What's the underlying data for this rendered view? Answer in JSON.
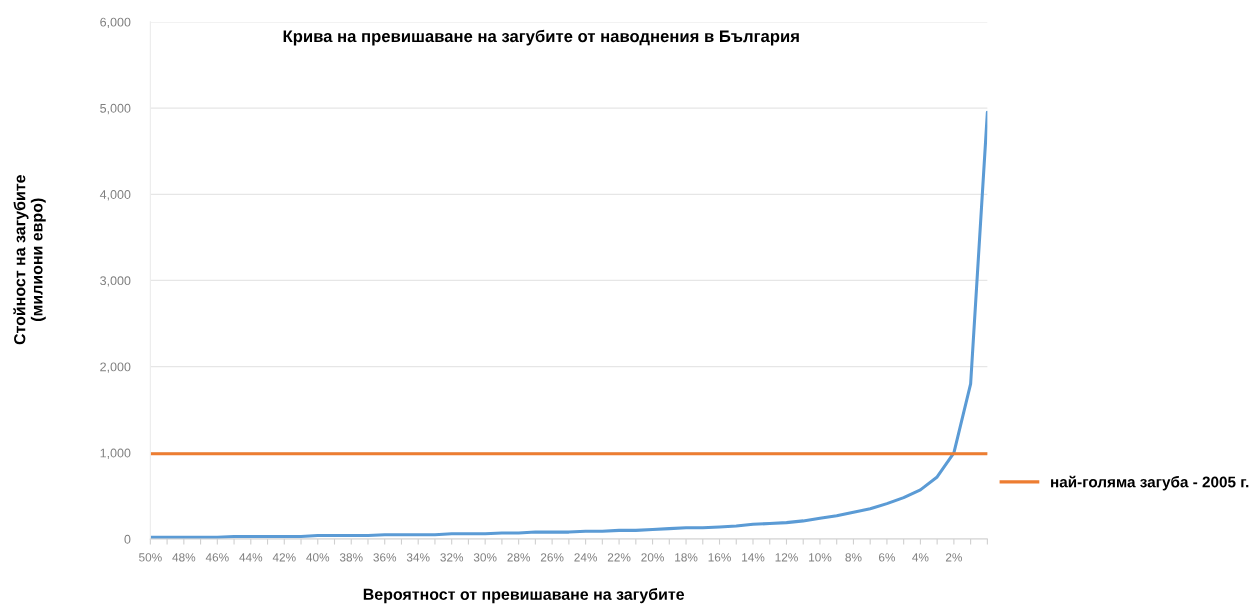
{
  "chart_data": {
    "type": "line",
    "title": "Крива на превишаване на загубите от наводнения в България",
    "xlabel": "Вероятност от превишаване на загубите",
    "ylabel": "Стойност на загубите\n(милиони евро)",
    "categories": [
      "50%",
      null,
      "48%",
      null,
      "46%",
      null,
      "44%",
      null,
      "42%",
      null,
      "40%",
      null,
      "38%",
      null,
      "36%",
      null,
      "34%",
      null,
      "32%",
      null,
      "30%",
      null,
      "28%",
      null,
      "26%",
      null,
      "24%",
      null,
      "22%",
      null,
      "20%",
      null,
      "18%",
      null,
      "16%",
      null,
      "14%",
      null,
      "12%",
      null,
      "10%",
      null,
      "8%",
      null,
      "6%",
      null,
      "4%",
      null,
      "2%",
      null,
      null
    ],
    "series": [
      {
        "color": "#5b9bd5",
        "values": [
          20,
          20,
          20,
          20,
          20,
          30,
          30,
          30,
          30,
          30,
          40,
          40,
          40,
          40,
          50,
          50,
          50,
          50,
          60,
          60,
          60,
          70,
          70,
          80,
          80,
          80,
          90,
          90,
          100,
          100,
          110,
          120,
          130,
          130,
          140,
          150,
          170,
          180,
          190,
          210,
          240,
          270,
          310,
          350,
          410,
          480,
          570,
          720,
          1000,
          1800,
          4950
        ]
      },
      {
        "name": "най-голяма загуба - 2005 г.",
        "color": "#ed7d31",
        "values": [
          990,
          990,
          990,
          990,
          990,
          990,
          990,
          990,
          990,
          990,
          990,
          990,
          990,
          990,
          990,
          990,
          990,
          990,
          990,
          990,
          990,
          990,
          990,
          990,
          990,
          990,
          990,
          990,
          990,
          990,
          990,
          990,
          990,
          990,
          990,
          990,
          990,
          990,
          990,
          990,
          990,
          990,
          990,
          990,
          990,
          990,
          990,
          990,
          990,
          990,
          990
        ]
      }
    ],
    "ylim": [
      0,
      6000
    ],
    "yticks": [
      0,
      {
        "value": 1000,
        "label": "1,000"
      },
      {
        "value": 2000,
        "label": "2,000"
      },
      {
        "value": 3000,
        "label": "3,000"
      },
      {
        "value": 4000,
        "label": "4,000"
      },
      {
        "value": 5000,
        "label": "5,000"
      },
      {
        "value": 6000,
        "label": "6,000"
      }
    ],
    "grid": "y",
    "legend": "right",
    "marker": "none",
    "line_style": "solid"
  }
}
